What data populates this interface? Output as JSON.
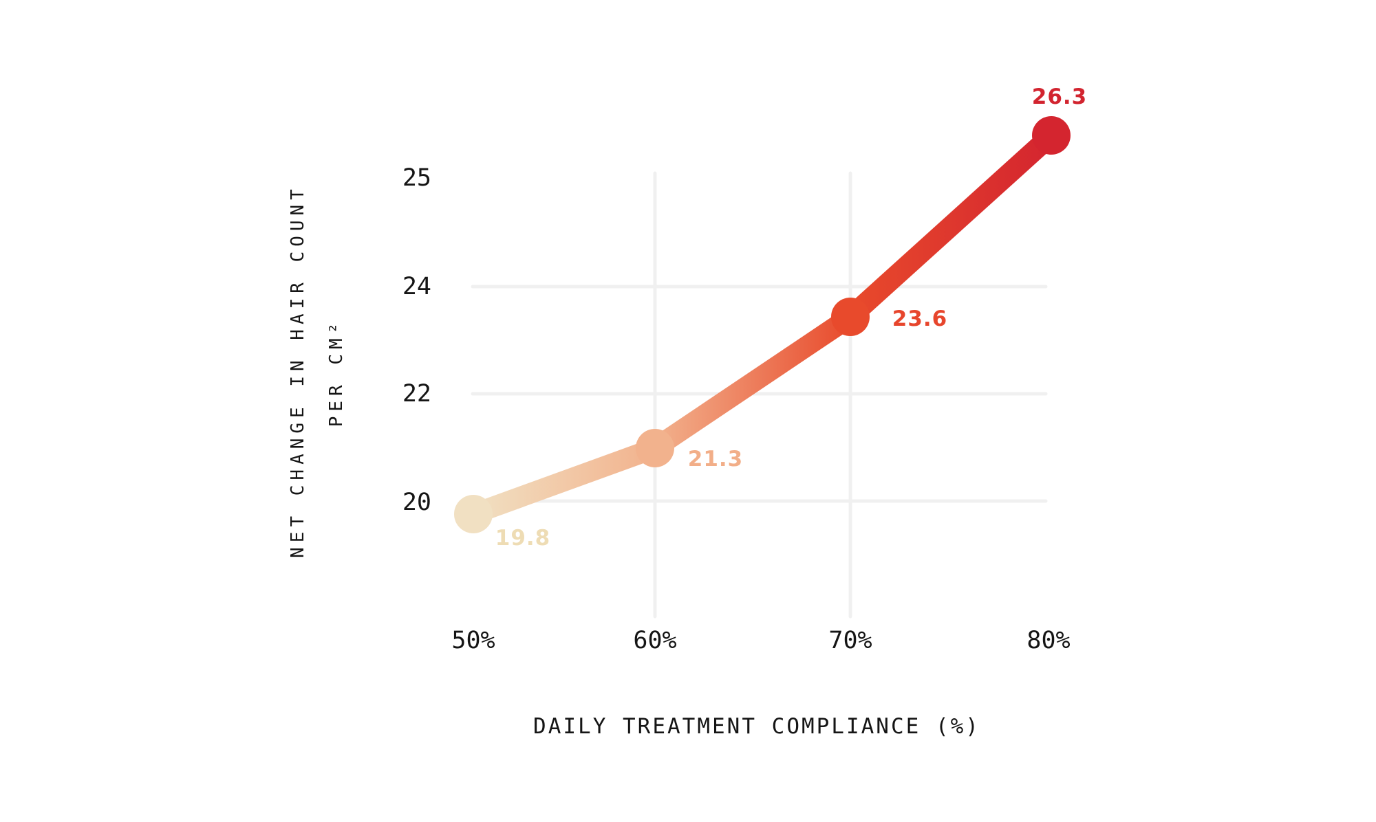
{
  "chart_data": {
    "type": "line",
    "title": "",
    "xlabel": "DAILY TREATMENT COMPLIANCE (%)",
    "ylabel_line1": "NET CHANGE IN HAIR COUNT",
    "ylabel_line2": "PER CM²",
    "categories": [
      "50%",
      "60%",
      "70%",
      "80%"
    ],
    "x_values": [
      50,
      60,
      70,
      80
    ],
    "values": [
      19.8,
      21.3,
      23.6,
      26.3
    ],
    "point_labels": [
      "19.8",
      "21.3",
      "23.6",
      "26.3"
    ],
    "y_tick_labels": [
      "25",
      "24",
      "22",
      "20"
    ],
    "y_tick_values": [
      25,
      24,
      22,
      20
    ],
    "grid": true,
    "legend": "none",
    "colors": {
      "background": "#ffffff",
      "text": "#151515",
      "grid": "#f0f0f0",
      "points": [
        "#f1e0c2",
        "#f2b28d",
        "#e84a2c",
        "#d4252f"
      ],
      "point_label_colors": [
        "#eedcb4",
        "#f2ae88",
        "#e7452c",
        "#d2242f"
      ]
    }
  }
}
